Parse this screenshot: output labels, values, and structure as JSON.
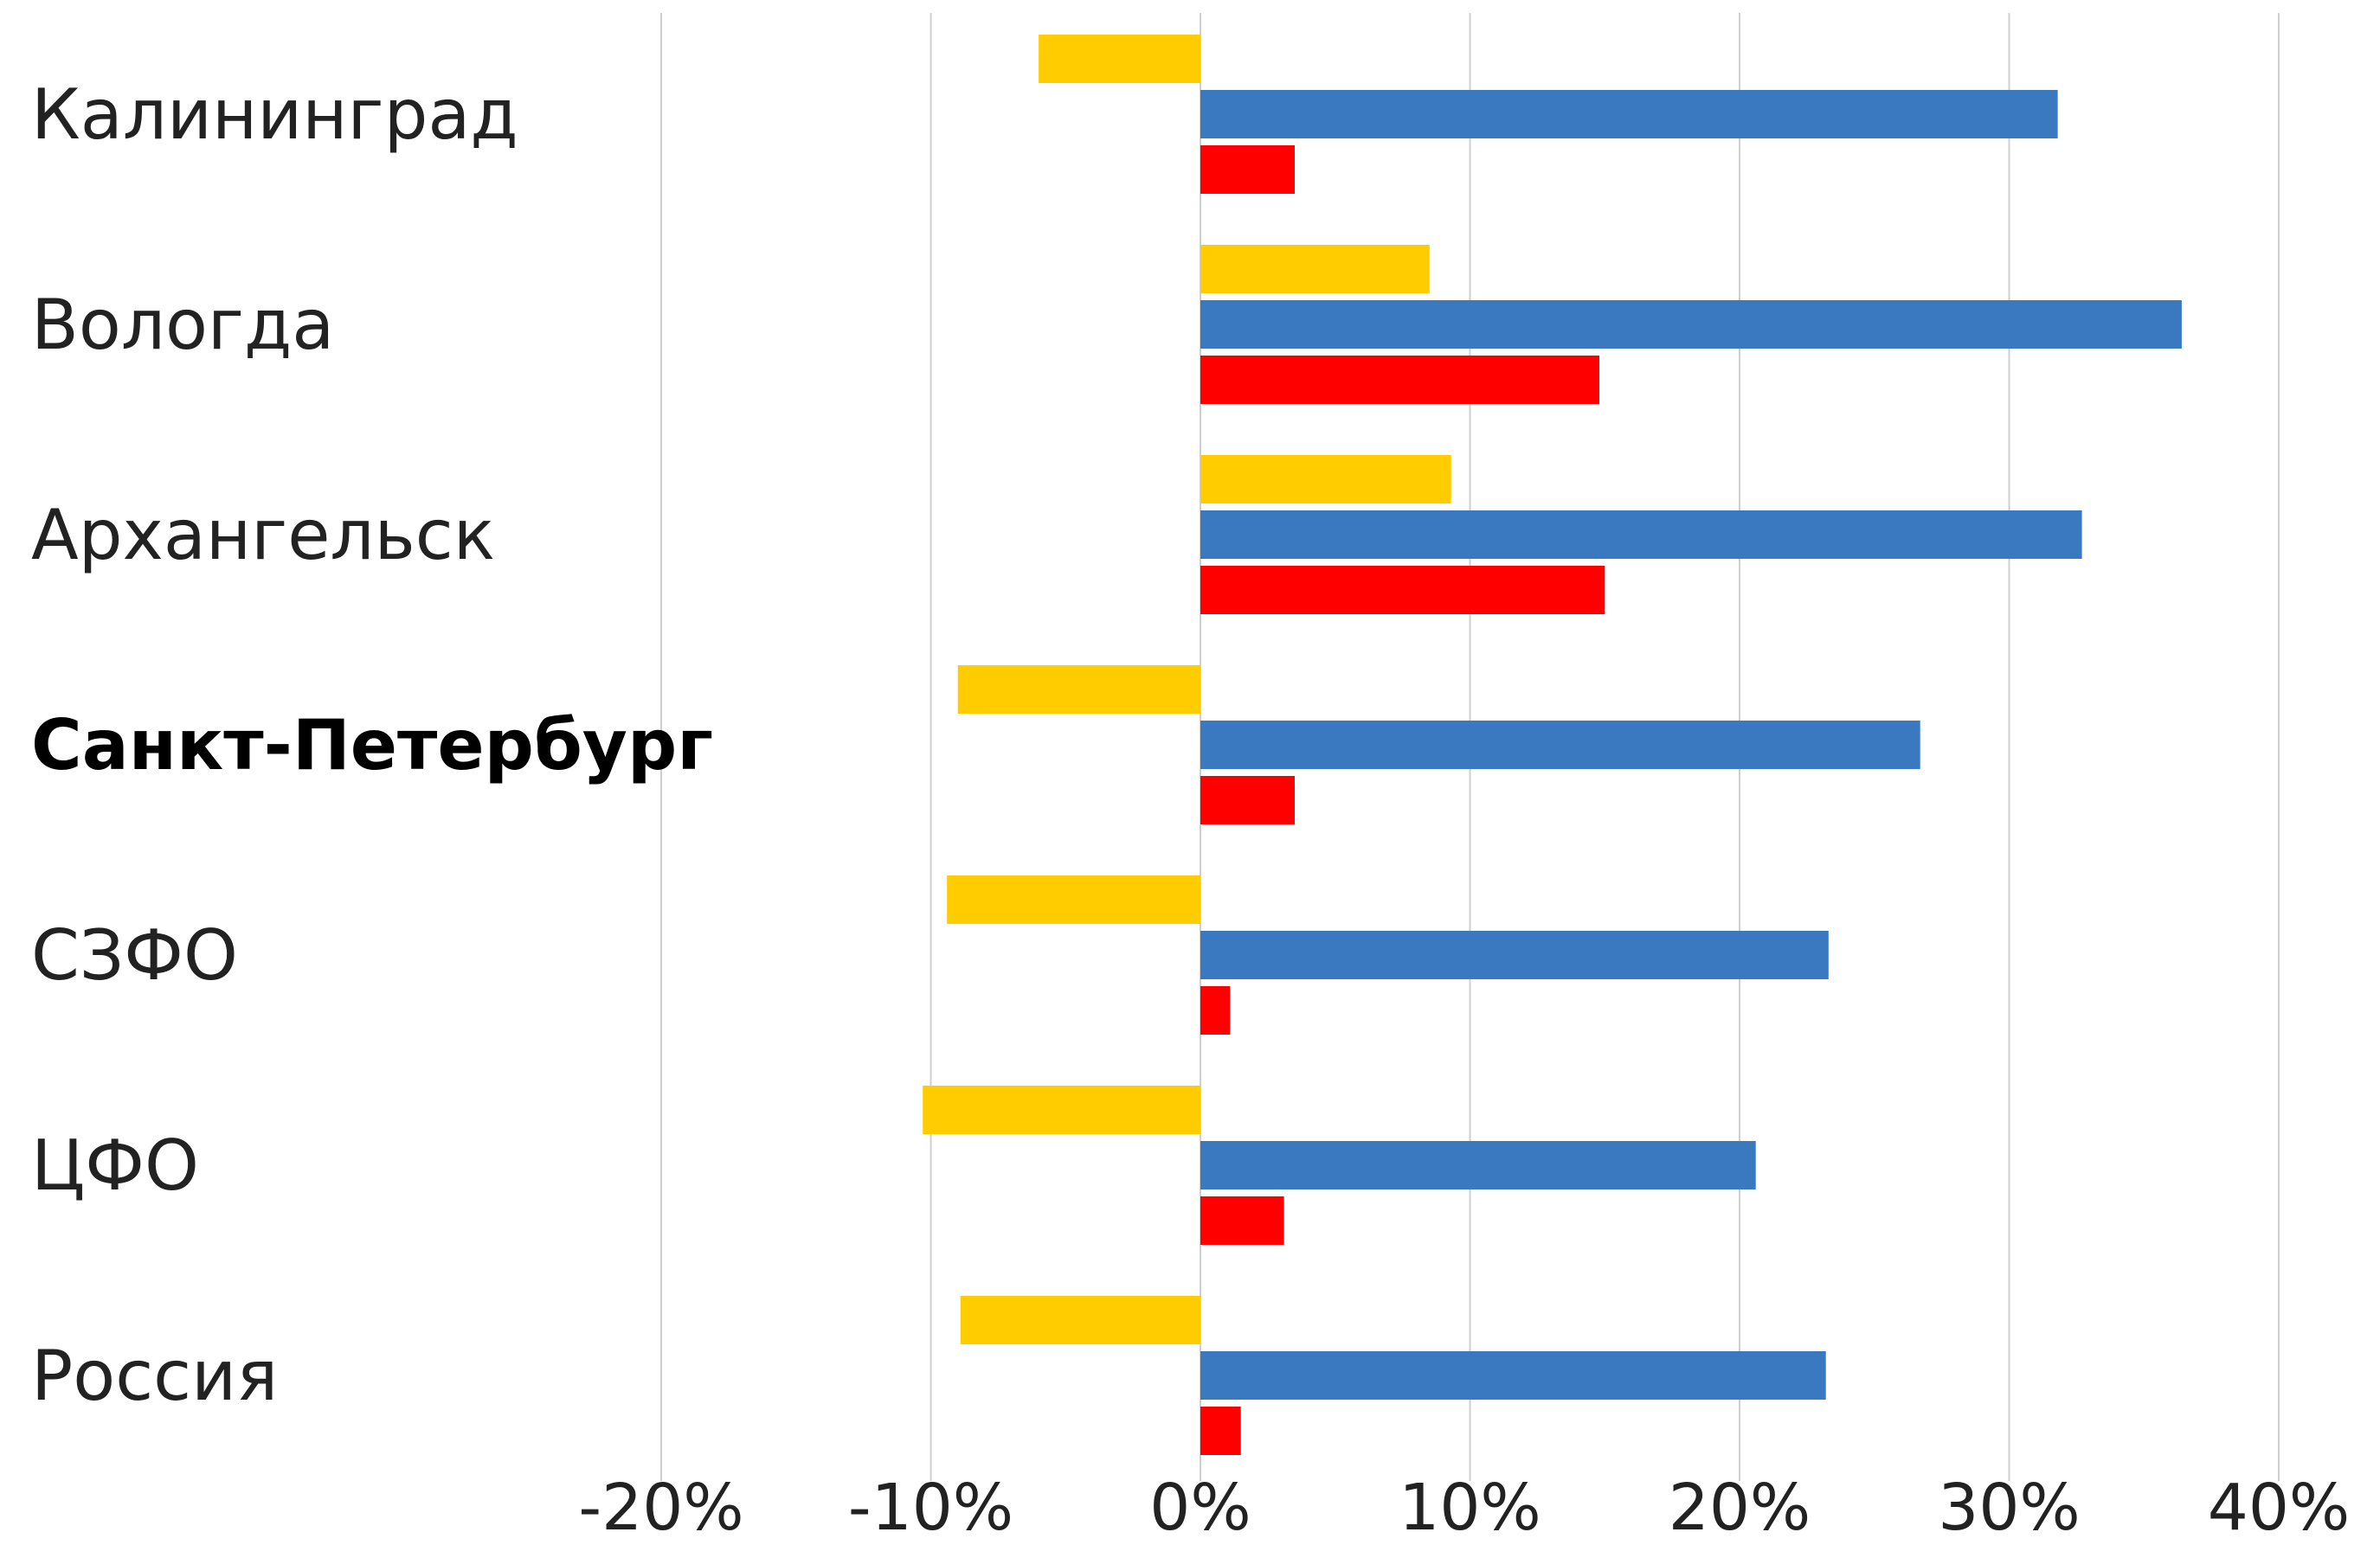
{
  "chart_data": {
    "type": "bar",
    "orientation": "horizontal",
    "categories": [
      "Калининград",
      "Вологда",
      "Архангельск",
      "Санкт-Петербург",
      "СЗФО",
      "ЦФО",
      "Россия"
    ],
    "highlighted_category": "Санкт-Петербург",
    "series": [
      {
        "color": "#FFCC00",
        "values": [
          -6.0,
          8.5,
          9.3,
          -9.0,
          -9.4,
          -10.3,
          -8.9
        ]
      },
      {
        "color": "#3A78C0",
        "values": [
          31.8,
          36.4,
          32.7,
          26.7,
          23.3,
          20.6,
          23.2
        ]
      },
      {
        "color": "#FF0000",
        "values": [
          3.5,
          14.8,
          15.0,
          3.5,
          1.1,
          3.1,
          1.5
        ]
      }
    ],
    "xlim": [
      -20,
      40
    ],
    "x_ticks": [
      -20,
      -10,
      0,
      10,
      20,
      30,
      40
    ],
    "x_tick_labels": [
      "-20%",
      "-10%",
      "0%",
      "10%",
      "20%",
      "30%",
      "40%"
    ],
    "grid": "vertical",
    "legend": "none"
  }
}
